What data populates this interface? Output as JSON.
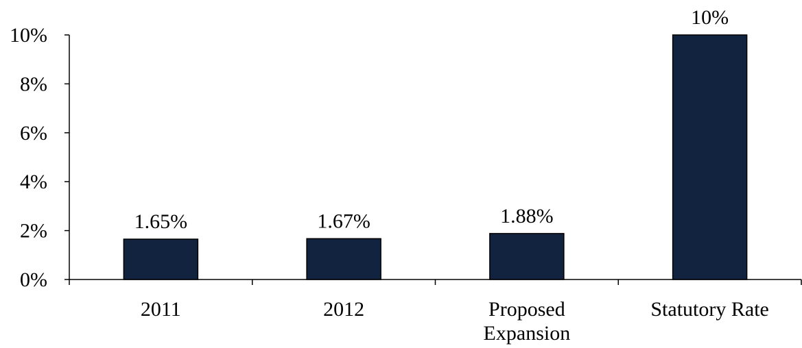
{
  "chart_data": {
    "type": "bar",
    "categories": [
      [
        "2011"
      ],
      [
        "2012"
      ],
      [
        "Proposed",
        "Expansion"
      ],
      [
        "Statutory Rate"
      ]
    ],
    "values": [
      1.65,
      1.67,
      1.88,
      10
    ],
    "data_labels": [
      "1.65%",
      "1.67%",
      "1.88%",
      "10%"
    ],
    "y_ticks": [
      {
        "value": 0,
        "label": "0%"
      },
      {
        "value": 2,
        "label": "2%"
      },
      {
        "value": 4,
        "label": "4%"
      },
      {
        "value": 6,
        "label": "6%"
      },
      {
        "value": 8,
        "label": "8%"
      },
      {
        "value": 10,
        "label": "10%"
      }
    ],
    "ylim": [
      0,
      10
    ],
    "title": "",
    "xlabel": "",
    "ylabel": "",
    "grid": false,
    "legend": "none",
    "colors": {
      "bar_fill": "#12233F",
      "bar_stroke": "#000000",
      "axis": "#000000"
    }
  }
}
